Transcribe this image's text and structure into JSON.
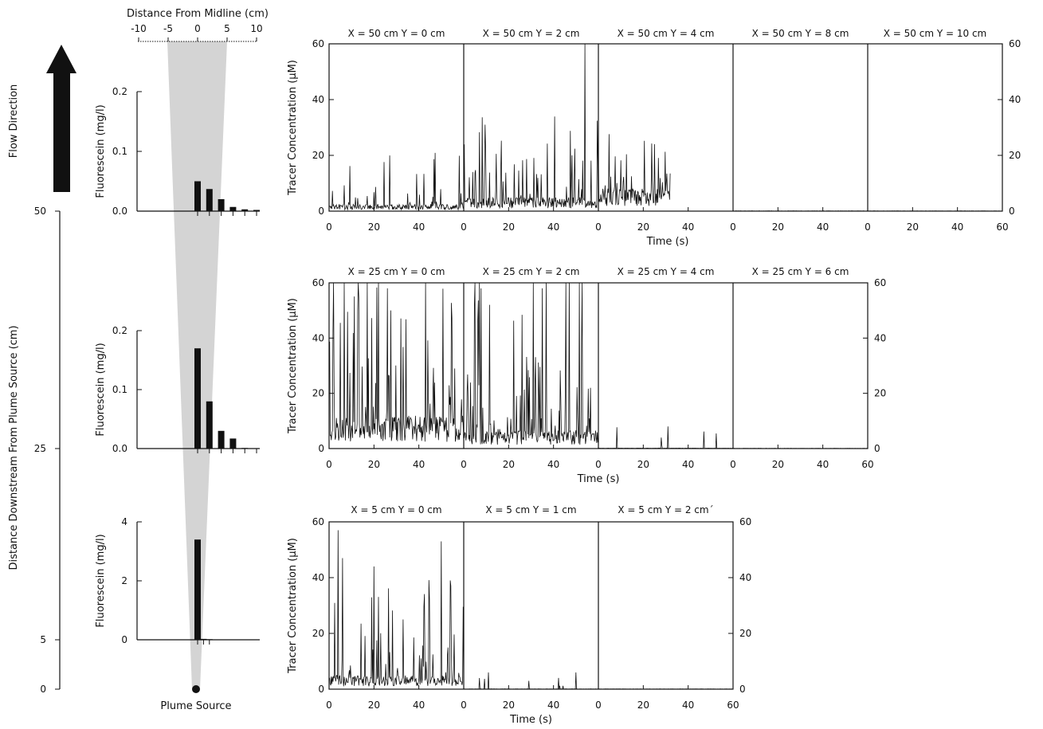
{
  "texts": {
    "flow_direction": "Flow Direction",
    "distance_axis": "Distance Downstream From Plume Source (cm)",
    "midline_axis": "Distance From Midline (cm)",
    "plume_source": "Plume Source",
    "fluor_label": "Fluorescein (mg/l)",
    "tracer_label": "Tracer Concentration (μM)",
    "time_label": "Time (s)"
  },
  "colors": {
    "plume": "#d4d4d4",
    "ink": "#111111",
    "background": "#ffffff"
  },
  "chart_data": [
    {
      "type": "bar",
      "name": "cross-stream fluorescein profiles",
      "x_label": "Distance From Midline (cm)",
      "x_ticks": [
        -10,
        -5,
        0,
        5,
        10
      ],
      "y_label": "Fluorescein (mg/l)",
      "profiles": [
        {
          "distance_cm": 50,
          "ylim": [
            0,
            0.2
          ],
          "y_ticks": [
            "0.0",
            "0.1",
            "0.2"
          ],
          "positions": [
            0,
            2,
            4,
            6,
            8,
            10
          ],
          "values": [
            0.05,
            0.037,
            0.02,
            0.007,
            0.003,
            0.002
          ]
        },
        {
          "distance_cm": 25,
          "ylim": [
            0,
            0.2
          ],
          "y_ticks": [
            "0.0",
            "0.1",
            "0.2"
          ],
          "positions": [
            0,
            2,
            4,
            6,
            8,
            10
          ],
          "values": [
            0.17,
            0.08,
            0.03,
            0.017,
            0.001,
            0
          ]
        },
        {
          "distance_cm": 5,
          "ylim": [
            0,
            4
          ],
          "y_ticks": [
            "0",
            "2",
            "4"
          ],
          "positions": [
            0,
            1,
            2
          ],
          "values": [
            3.4,
            0.03,
            0.02
          ]
        }
      ],
      "distance_axis": {
        "label": "Distance Downstream From Plume Source (cm)",
        "ticks": [
          50,
          25,
          5,
          0
        ]
      }
    },
    {
      "type": "line",
      "name": "tracer time series",
      "y_label": "Tracer Concentration (μM)",
      "x_label": "Time (s)",
      "ylim": [
        0,
        60
      ],
      "y_ticks": [
        0,
        20,
        40,
        60
      ],
      "xlim": [
        0,
        60
      ],
      "x_ticks": [
        0,
        20,
        40,
        60
      ],
      "rows": [
        {
          "x_cm": 50,
          "panels": [
            {
              "title": "X = 50 cm   Y = 0 cm",
              "duration_s": 60,
              "baseline": 1.5,
              "peak_rate": 0.45,
              "peak_max": 22
            },
            {
              "title": "X = 50 cm   Y = 2 cm",
              "duration_s": 60,
              "baseline": 3,
              "peak_rate": 0.7,
              "peak_max": 34,
              "spikes": [
                [
                  9.5,
                  31
                ],
                [
                  54,
                  60
                ]
              ]
            },
            {
              "title": "X = 50 cm   Y = 4 cm",
              "duration_s": 32,
              "baseline": 5,
              "peak_rate": 0.8,
              "peak_max": 25
            },
            {
              "title": "X = 50 cm   Y = 8 cm",
              "duration_s": 60,
              "baseline": 0.05,
              "peak_rate": 0,
              "peak_max": 0
            },
            {
              "title": "X = 50 cm   Y = 10 cm",
              "duration_s": 60,
              "baseline": 0.05,
              "peak_rate": 0,
              "peak_max": 0
            }
          ]
        },
        {
          "x_cm": 25,
          "panels": [
            {
              "title": "X = 25 cm   Y = 0 cm",
              "duration_s": 60,
              "baseline": 7,
              "peak_rate": 0.75,
              "peak_max": 60,
              "spikes": [
                [
                  13,
                  60
                ],
                [
                  17,
                  60
                ],
                [
                  22,
                  60
                ],
                [
                  26,
                  58
                ],
                [
                  43,
                  60
                ]
              ]
            },
            {
              "title": "X = 25 cm   Y = 2 cm",
              "duration_s": 60,
              "baseline": 4,
              "peak_rate": 0.8,
              "peak_max": 60,
              "spikes": [
                [
                  5,
                  60
                ],
                [
                  7,
                  60
                ],
                [
                  31,
                  60
                ],
                [
                  35,
                  58
                ]
              ]
            },
            {
              "title": "X = 25 cm   Y = 4 cm",
              "duration_s": 60,
              "baseline": 0.1,
              "peak_rate": 0.05,
              "peak_max": 9,
              "spikes": [
                [
                  28,
                  4
                ],
                [
                  31,
                  8
                ]
              ]
            },
            {
              "title": "X = 25 cm   Y = 6 cm",
              "duration_s": 60,
              "baseline": 0.05,
              "peak_rate": 0,
              "peak_max": 0
            }
          ]
        },
        {
          "x_cm": 5,
          "panels": [
            {
              "title": "X = 5 cm   Y = 0 cm",
              "duration_s": 60,
              "baseline": 3,
              "peak_rate": 0.6,
              "peak_max": 38,
              "spikes": [
                [
                  4,
                  57
                ],
                [
                  6,
                  47
                ],
                [
                  20,
                  44
                ],
                [
                  33,
                  25
                ],
                [
                  50,
                  53
                ],
                [
                  54,
                  39
                ]
              ]
            },
            {
              "title": "X = 5 cm   Y = 1 cm",
              "duration_s": 60,
              "baseline": 0.05,
              "peak_rate": 0.05,
              "peak_max": 6,
              "spikes": [
                [
                  7,
                  4
                ],
                [
                  11,
                  6
                ],
                [
                  29,
                  3
                ],
                [
                  50,
                  6
                ]
              ]
            },
            {
              "title": "X = 5 cm   Y = 2 cm´",
              "duration_s": 60,
              "baseline": 0.05,
              "peak_rate": 0,
              "peak_max": 0
            }
          ]
        }
      ]
    }
  ]
}
